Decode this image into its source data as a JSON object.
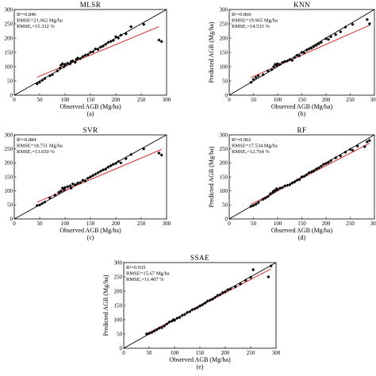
{
  "chart_data": [
    {
      "type": "scatter",
      "title": "MLSR",
      "caption": "(a)",
      "xlabel": "Observed AGB (Mg/ha)",
      "ylabel": "",
      "xlim": [
        0,
        300
      ],
      "ylim": [
        0,
        300
      ],
      "xticks": [
        "0",
        "50",
        "100",
        "150",
        "200",
        "250",
        "300"
      ],
      "yticks": [
        "0",
        "50",
        "100",
        "150",
        "200",
        "250",
        "300"
      ],
      "stats": [
        "R²=0.846",
        "RMSE=21.062 Mg/ha",
        "RMSEᵣ=15.332 %"
      ],
      "fit_line": [
        [
          45,
          63
        ],
        [
          285,
          240
        ]
      ],
      "one_to_one": [
        [
          0,
          0
        ],
        [
          300,
          300
        ]
      ],
      "points": [
        [
          45,
          40
        ],
        [
          50,
          45
        ],
        [
          55,
          52
        ],
        [
          60,
          58
        ],
        [
          70,
          68
        ],
        [
          75,
          72
        ],
        [
          85,
          85
        ],
        [
          90,
          95
        ],
        [
          92,
          105
        ],
        [
          95,
          110
        ],
        [
          98,
          100
        ],
        [
          100,
          108
        ],
        [
          105,
          112
        ],
        [
          110,
          110
        ],
        [
          112,
          118
        ],
        [
          115,
          120
        ],
        [
          120,
          115
        ],
        [
          122,
          125
        ],
        [
          125,
          130
        ],
        [
          130,
          128
        ],
        [
          135,
          135
        ],
        [
          140,
          140
        ],
        [
          145,
          142
        ],
        [
          150,
          150
        ],
        [
          155,
          152
        ],
        [
          160,
          162
        ],
        [
          165,
          160
        ],
        [
          170,
          168
        ],
        [
          175,
          172
        ],
        [
          180,
          178
        ],
        [
          185,
          185
        ],
        [
          190,
          188
        ],
        [
          195,
          192
        ],
        [
          200,
          205
        ],
        [
          205,
          200
        ],
        [
          210,
          210
        ],
        [
          220,
          215
        ],
        [
          230,
          240
        ],
        [
          255,
          248
        ],
        [
          285,
          193
        ],
        [
          290,
          188
        ]
      ]
    },
    {
      "type": "scatter",
      "title": "KNN",
      "caption": "(b)",
      "xlabel": "Observed AGB (Mg/ha)",
      "ylabel": "Predicted AGB (Mg/ha)",
      "xlim": [
        0,
        300
      ],
      "ylim": [
        0,
        300
      ],
      "xticks": [
        "0",
        "50",
        "100",
        "150",
        "200",
        "250",
        "300"
      ],
      "yticks": [
        "0",
        "50",
        "100",
        "150",
        "200",
        "250",
        "300"
      ],
      "stats": [
        "R²=0.866",
        "RMSE=19.965 Mg/ha",
        "RMSEᵣ=14.533 %"
      ],
      "fit_line": [
        [
          45,
          62
        ],
        [
          290,
          245
        ]
      ],
      "one_to_one": [
        [
          0,
          0
        ],
        [
          300,
          300
        ]
      ],
      "points": [
        [
          45,
          45
        ],
        [
          50,
          55
        ],
        [
          55,
          62
        ],
        [
          60,
          68
        ],
        [
          70,
          72
        ],
        [
          80,
          85
        ],
        [
          88,
          90
        ],
        [
          92,
          100
        ],
        [
          95,
          108
        ],
        [
          98,
          105
        ],
        [
          100,
          110
        ],
        [
          105,
          108
        ],
        [
          110,
          115
        ],
        [
          115,
          118
        ],
        [
          120,
          120
        ],
        [
          125,
          125
        ],
        [
          130,
          122
        ],
        [
          135,
          132
        ],
        [
          140,
          140
        ],
        [
          145,
          138
        ],
        [
          150,
          150
        ],
        [
          155,
          148
        ],
        [
          160,
          158
        ],
        [
          165,
          162
        ],
        [
          170,
          165
        ],
        [
          175,
          170
        ],
        [
          180,
          175
        ],
        [
          185,
          180
        ],
        [
          190,
          185
        ],
        [
          200,
          198
        ],
        [
          205,
          195
        ],
        [
          210,
          205
        ],
        [
          220,
          212
        ],
        [
          230,
          222
        ],
        [
          240,
          238
        ],
        [
          255,
          248
        ],
        [
          285,
          265
        ],
        [
          290,
          250
        ]
      ]
    },
    {
      "type": "scatter",
      "title": "SVR",
      "caption": "(c)",
      "xlabel": "Observed AGB (Mg/ha)",
      "ylabel": "",
      "xlim": [
        0,
        300
      ],
      "ylim": [
        0,
        300
      ],
      "xticks": [
        "0",
        "50",
        "100",
        "150",
        "200",
        "250",
        "300"
      ],
      "yticks": [
        "0",
        "50",
        "100",
        "150",
        "200",
        "250",
        "300"
      ],
      "stats": [
        "R²=0.884",
        "RMSE=18.751 Mg/ha",
        "RMSEᵣ=13.650 %"
      ],
      "fit_line": [
        [
          45,
          60
        ],
        [
          290,
          248
        ]
      ],
      "one_to_one": [
        [
          0,
          0
        ],
        [
          300,
          300
        ]
      ],
      "points": [
        [
          45,
          48
        ],
        [
          50,
          50
        ],
        [
          55,
          55
        ],
        [
          60,
          60
        ],
        [
          70,
          75
        ],
        [
          80,
          85
        ],
        [
          88,
          95
        ],
        [
          92,
          100
        ],
        [
          95,
          110
        ],
        [
          98,
          105
        ],
        [
          100,
          112
        ],
        [
          105,
          115
        ],
        [
          110,
          118
        ],
        [
          112,
          110
        ],
        [
          115,
          125
        ],
        [
          120,
          122
        ],
        [
          125,
          128
        ],
        [
          130,
          130
        ],
        [
          135,
          138
        ],
        [
          140,
          135
        ],
        [
          145,
          145
        ],
        [
          150,
          150
        ],
        [
          155,
          155
        ],
        [
          160,
          160
        ],
        [
          165,
          165
        ],
        [
          170,
          170
        ],
        [
          175,
          175
        ],
        [
          180,
          178
        ],
        [
          185,
          185
        ],
        [
          190,
          190
        ],
        [
          195,
          195
        ],
        [
          200,
          198
        ],
        [
          205,
          205
        ],
        [
          210,
          200
        ],
        [
          220,
          215
        ],
        [
          230,
          230
        ],
        [
          255,
          250
        ],
        [
          285,
          235
        ],
        [
          290,
          228
        ]
      ]
    },
    {
      "type": "scatter",
      "title": "RF",
      "caption": "(d)",
      "xlabel": "Observed AGB (Mg/ha)",
      "ylabel": "Predicted AGB (Mg/ha)",
      "xlim": [
        0,
        300
      ],
      "ylim": [
        0,
        300
      ],
      "xticks": [
        "0",
        "50",
        "100",
        "150",
        "200",
        "250",
        "300"
      ],
      "yticks": [
        "0",
        "50",
        "100",
        "150",
        "200",
        "250",
        "300"
      ],
      "stats": [
        "R²=0.902",
        "RMSE=17.534 Mg/ha",
        "RMSEᵣ=12.764 %"
      ],
      "fit_line": [
        [
          45,
          52
        ],
        [
          290,
          270
        ]
      ],
      "one_to_one": [
        [
          0,
          0
        ],
        [
          300,
          300
        ]
      ],
      "points": [
        [
          45,
          45
        ],
        [
          50,
          48
        ],
        [
          55,
          52
        ],
        [
          60,
          58
        ],
        [
          70,
          70
        ],
        [
          75,
          75
        ],
        [
          80,
          80
        ],
        [
          85,
          90
        ],
        [
          90,
          95
        ],
        [
          92,
          100
        ],
        [
          95,
          102
        ],
        [
          98,
          108
        ],
        [
          100,
          105
        ],
        [
          105,
          110
        ],
        [
          110,
          112
        ],
        [
          115,
          118
        ],
        [
          120,
          120
        ],
        [
          125,
          122
        ],
        [
          130,
          128
        ],
        [
          135,
          132
        ],
        [
          140,
          138
        ],
        [
          145,
          140
        ],
        [
          150,
          150
        ],
        [
          155,
          152
        ],
        [
          160,
          158
        ],
        [
          165,
          165
        ],
        [
          170,
          168
        ],
        [
          175,
          172
        ],
        [
          180,
          178
        ],
        [
          185,
          182
        ],
        [
          190,
          188
        ],
        [
          195,
          195
        ],
        [
          200,
          198
        ],
        [
          205,
          202
        ],
        [
          210,
          208
        ],
        [
          220,
          218
        ],
        [
          230,
          225
        ],
        [
          240,
          238
        ],
        [
          250,
          248
        ],
        [
          255,
          245
        ],
        [
          265,
          260
        ],
        [
          280,
          258
        ],
        [
          285,
          275
        ],
        [
          290,
          280
        ]
      ]
    },
    {
      "type": "scatter",
      "title": "SSAE",
      "caption": "(e)",
      "xlabel": "Observed AGB (Mg/ha)",
      "ylabel": "Predicted AGB (Mg/ha)",
      "xlim": [
        0,
        300
      ],
      "ylim": [
        0,
        300
      ],
      "xticks": [
        "0",
        "50",
        "100",
        "150",
        "200",
        "250",
        "300"
      ],
      "yticks": [
        "0",
        "50",
        "100",
        "150",
        "200",
        "250",
        "300"
      ],
      "stats": [
        "R²=0.935",
        "RMSE=15.67 Mg/ha",
        "RMSEᵣ=11.407 %"
      ],
      "fit_line": [
        [
          45,
          50
        ],
        [
          290,
          278
        ]
      ],
      "one_to_one": [
        [
          0,
          0
        ],
        [
          300,
          300
        ]
      ],
      "points": [
        [
          45,
          50
        ],
        [
          50,
          52
        ],
        [
          55,
          55
        ],
        [
          60,
          60
        ],
        [
          65,
          65
        ],
        [
          70,
          70
        ],
        [
          75,
          72
        ],
        [
          80,
          78
        ],
        [
          85,
          85
        ],
        [
          90,
          92
        ],
        [
          95,
          95
        ],
        [
          98,
          100
        ],
        [
          100,
          98
        ],
        [
          105,
          105
        ],
        [
          110,
          108
        ],
        [
          115,
          115
        ],
        [
          120,
          118
        ],
        [
          125,
          125
        ],
        [
          130,
          128
        ],
        [
          135,
          135
        ],
        [
          140,
          138
        ],
        [
          145,
          142
        ],
        [
          150,
          148
        ],
        [
          155,
          152
        ],
        [
          160,
          158
        ],
        [
          165,
          165
        ],
        [
          170,
          168
        ],
        [
          175,
          172
        ],
        [
          180,
          178
        ],
        [
          185,
          185
        ],
        [
          190,
          188
        ],
        [
          195,
          195
        ],
        [
          200,
          198
        ],
        [
          205,
          205
        ],
        [
          210,
          208
        ],
        [
          220,
          215
        ],
        [
          230,
          225
        ],
        [
          240,
          238
        ],
        [
          250,
          248
        ],
        [
          255,
          275
        ],
        [
          285,
          250
        ],
        [
          290,
          288
        ]
      ]
    }
  ]
}
